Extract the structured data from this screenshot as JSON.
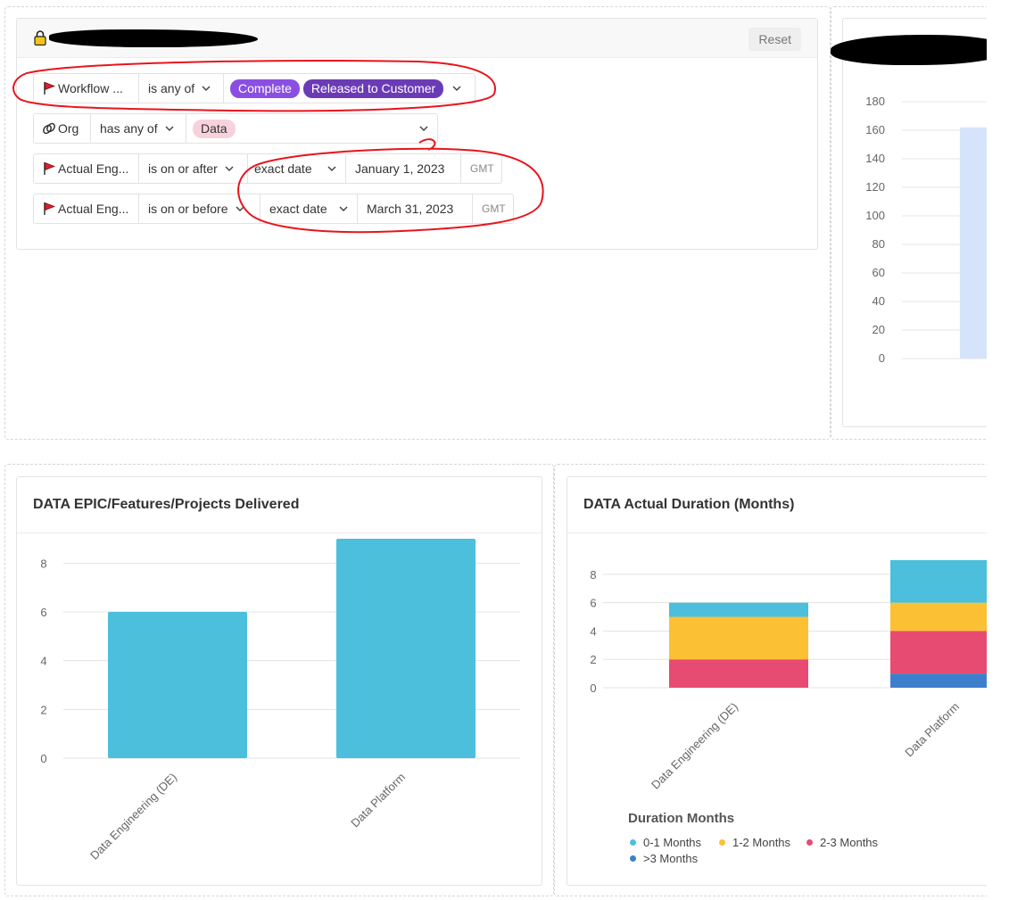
{
  "filters": {
    "reset_label": "Reset",
    "rows": [
      {
        "icon": "flag-icon",
        "field": "Workflow ...",
        "operator": "is any of",
        "pills": [
          "Complete",
          "Released to Customer"
        ]
      },
      {
        "icon": "link-icon",
        "field": "Org",
        "operator": "has any of",
        "pills": [
          "Data"
        ]
      },
      {
        "icon": "flag-icon",
        "field": "Actual Eng...",
        "operator": "is on or after",
        "date_mode": "exact date",
        "date": "January 1, 2023",
        "tz": "GMT"
      },
      {
        "icon": "flag-icon",
        "field": "Actual Eng...",
        "operator": "is on or before",
        "date_mode": "exact date",
        "date": "March 31, 2023",
        "tz": "GMT"
      }
    ]
  },
  "chart_data": [
    {
      "type": "bar",
      "yticks": [
        0,
        20,
        40,
        60,
        80,
        100,
        120,
        140,
        160,
        180
      ],
      "ylim": [
        0,
        180
      ],
      "values": [
        162
      ],
      "color": "#d6e4fb"
    },
    {
      "type": "bar",
      "title": "DATA EPIC/Features/Projects Delivered",
      "categories": [
        "Data Engineering (DE)",
        "Data Platform"
      ],
      "values": [
        6,
        9
      ],
      "yticks": [
        0,
        2,
        4,
        6,
        8
      ],
      "ylim": [
        0,
        9
      ],
      "color": "#4bbfdc"
    },
    {
      "type": "bar",
      "stacked": true,
      "title": "DATA Actual Duration (Months)",
      "categories": [
        "Data Engineering (DE)",
        "Data Platform"
      ],
      "yticks": [
        0,
        2,
        4,
        6,
        8
      ],
      "ylim": [
        0,
        9
      ],
      "legend_title": "Duration Months",
      "series": [
        {
          "name": ">3 Months",
          "values": [
            0,
            1
          ],
          "color": "#3e7fcb"
        },
        {
          "name": "2-3 Months",
          "values": [
            2,
            3
          ],
          "color": "#e84b72"
        },
        {
          "name": "1-2 Months",
          "values": [
            3,
            2
          ],
          "color": "#fbc034"
        },
        {
          "name": "0-1 Months",
          "values": [
            1,
            3
          ],
          "color": "#4bbfdc"
        }
      ],
      "legend_order": [
        "0-1 Months",
        "1-2 Months",
        "2-3 Months",
        ">3 Months"
      ]
    }
  ]
}
